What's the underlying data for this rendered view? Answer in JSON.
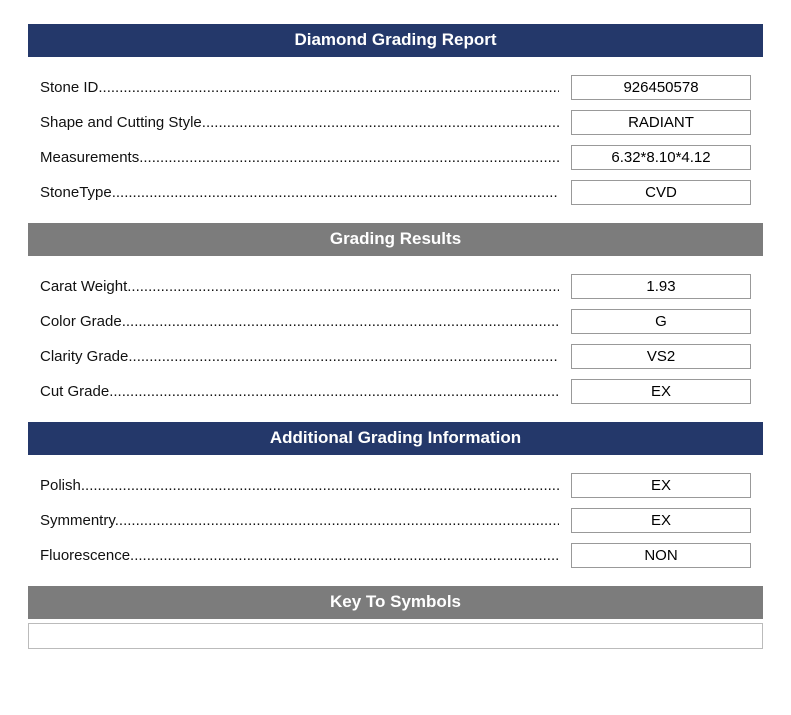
{
  "colors": {
    "navy": "#24386a",
    "gray": "#7c7c7c",
    "border": "#999999",
    "text": "#111111",
    "bg": "#ffffff"
  },
  "sections": {
    "s1": {
      "title": "Diamond Grading Report",
      "rows": {
        "stone_id": {
          "label": "Stone ID",
          "value": "926450578"
        },
        "shape": {
          "label": "Shape and Cutting Style",
          "value": "RADIANT"
        },
        "meas": {
          "label": "Measurements",
          "value": "6.32*8.10*4.12"
        },
        "stone_type": {
          "label": "StoneType",
          "value": "CVD"
        }
      }
    },
    "s2": {
      "title": "Grading Results",
      "rows": {
        "carat": {
          "label": "Carat Weight",
          "value": "1.93"
        },
        "color": {
          "label": "Color Grade",
          "value": "G"
        },
        "clarity": {
          "label": "Clarity Grade",
          "value": "VS2"
        },
        "cut": {
          "label": "Cut Grade",
          "value": "EX"
        }
      }
    },
    "s3": {
      "title": "Additional Grading Information",
      "rows": {
        "polish": {
          "label": "Polish",
          "value": "EX"
        },
        "symmetry": {
          "label": "Symmentry",
          "value": "EX"
        },
        "fluor": {
          "label": "Fluorescence",
          "value": "NON"
        }
      }
    },
    "s4": {
      "title": "Key To Symbols"
    }
  }
}
